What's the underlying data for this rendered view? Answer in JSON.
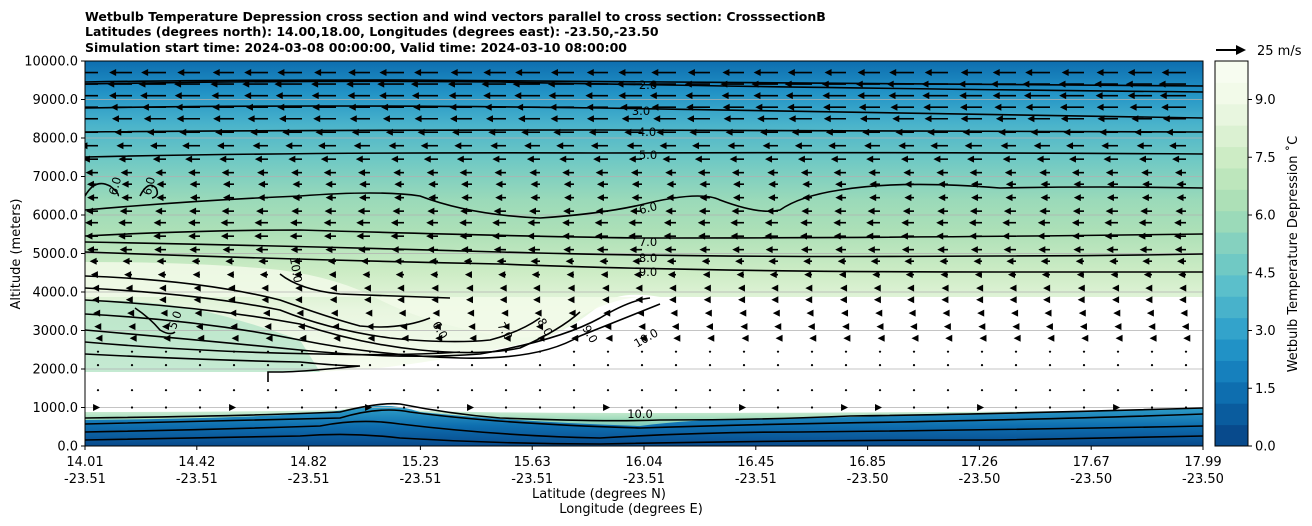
{
  "title_lines": [
    "Wetbulb Temperature Depression cross section and wind vectors parallel to cross section: CrosssectionB",
    "Latitudes (degrees north): 14.00,18.00, Longitudes (degrees east): -23.50,-23.50",
    "Simulation start time: 2024-03-08 00:00:00, Valid time: 2024-03-10 08:00:00"
  ],
  "chart_data": {
    "type": "heatmap",
    "subtype": "filled contour cross-section with wind vectors",
    "ylabel": "Altitude (meters)",
    "xlabel_lines": [
      "Latitude (degrees N)",
      "Longitude (degrees E)"
    ],
    "ylim": [
      0,
      10000
    ],
    "y_ticks": [
      "0.0",
      "1000.0",
      "2000.0",
      "3000.0",
      "4000.0",
      "5000.0",
      "6000.0",
      "7000.0",
      "8000.0",
      "9000.0",
      "10000.0"
    ],
    "x_ticks": [
      {
        "lat": "14.01",
        "lon": "-23.51"
      },
      {
        "lat": "14.42",
        "lon": "-23.51"
      },
      {
        "lat": "14.82",
        "lon": "-23.51"
      },
      {
        "lat": "15.23",
        "lon": "-23.51"
      },
      {
        "lat": "15.63",
        "lon": "-23.51"
      },
      {
        "lat": "16.04",
        "lon": "-23.51"
      },
      {
        "lat": "16.45",
        "lon": "-23.51"
      },
      {
        "lat": "16.85",
        "lon": "-23.50"
      },
      {
        "lat": "17.26",
        "lon": "-23.50"
      },
      {
        "lat": "17.67",
        "lon": "-23.50"
      },
      {
        "lat": "17.99",
        "lon": "-23.50"
      }
    ],
    "grid": "horizontal lines",
    "colorbar": {
      "label": "Wetbulb Temperature Depression ˚C",
      "range": [
        0,
        10
      ],
      "ticks": [
        "0.0",
        "1.5",
        "3.0",
        "4.5",
        "6.0",
        "7.5",
        "9.0"
      ],
      "colors": [
        "#084a8c",
        "#0a5c9e",
        "#0e6eaf",
        "#1680bd",
        "#2192c6",
        "#33a3cb",
        "#48b2cb",
        "#5bbfcb",
        "#70c9c4",
        "#85d1bf",
        "#9bdab9",
        "#ade0b7",
        "#bde6bc",
        "#cdecc5",
        "#dbf1d2",
        "#e8f6df",
        "#f2fae9",
        "#f7fcf0"
      ]
    },
    "wind_key": {
      "label": "25 m/s",
      "value": 25
    },
    "contours": [
      {
        "level": "2.0",
        "label": "2.0"
      },
      {
        "level": "3.0",
        "label": "3.0"
      },
      {
        "level": "4.0",
        "label": "4.0"
      },
      {
        "level": "5.0",
        "label": "5.0"
      },
      {
        "level": "6.0",
        "label": "6.0"
      },
      {
        "level": "7.0",
        "label": "7.0"
      },
      {
        "level": "8.0",
        "label": "8.0"
      },
      {
        "level": "9.0",
        "label": "9.0"
      },
      {
        "level": "10.0",
        "label": "10.0"
      }
    ],
    "contour_labels": [
      "2.0",
      "3.0",
      "4.0",
      "5.0",
      "6.0",
      "7.0",
      "8.0",
      "9.0",
      "6.0",
      "6.0",
      "10.0",
      "5.0",
      "6.0",
      "7.0",
      "8.0",
      "9.0",
      "10.0",
      "10.0"
    ],
    "wind_profile": [
      {
        "alt": 9700,
        "u": -18
      },
      {
        "alt": 9400,
        "u": -20
      },
      {
        "alt": 9100,
        "u": -19
      },
      {
        "alt": 8800,
        "u": -18
      },
      {
        "alt": 8500,
        "u": -17
      },
      {
        "alt": 8150,
        "u": -15
      },
      {
        "alt": 7800,
        "u": -13
      },
      {
        "alt": 7450,
        "u": -11
      },
      {
        "alt": 7100,
        "u": -9
      },
      {
        "alt": 6800,
        "u": -8
      },
      {
        "alt": 6450,
        "u": -8
      },
      {
        "alt": 6100,
        "u": -9
      },
      {
        "alt": 5800,
        "u": -10
      },
      {
        "alt": 5450,
        "u": -10
      },
      {
        "alt": 5100,
        "u": -9
      },
      {
        "alt": 4800,
        "u": -7
      },
      {
        "alt": 4450,
        "u": -6
      },
      {
        "alt": 4100,
        "u": -5
      },
      {
        "alt": 3800,
        "u": -5
      },
      {
        "alt": 3450,
        "u": -4
      },
      {
        "alt": 3100,
        "u": -3
      },
      {
        "alt": 2800,
        "u": -2
      },
      {
        "alt": 2450,
        "u": -1
      },
      {
        "alt": 2100,
        "u": -0.5
      },
      {
        "alt": 1450,
        "u": 0.5
      },
      {
        "alt": 1000,
        "u": 1.5
      }
    ]
  }
}
